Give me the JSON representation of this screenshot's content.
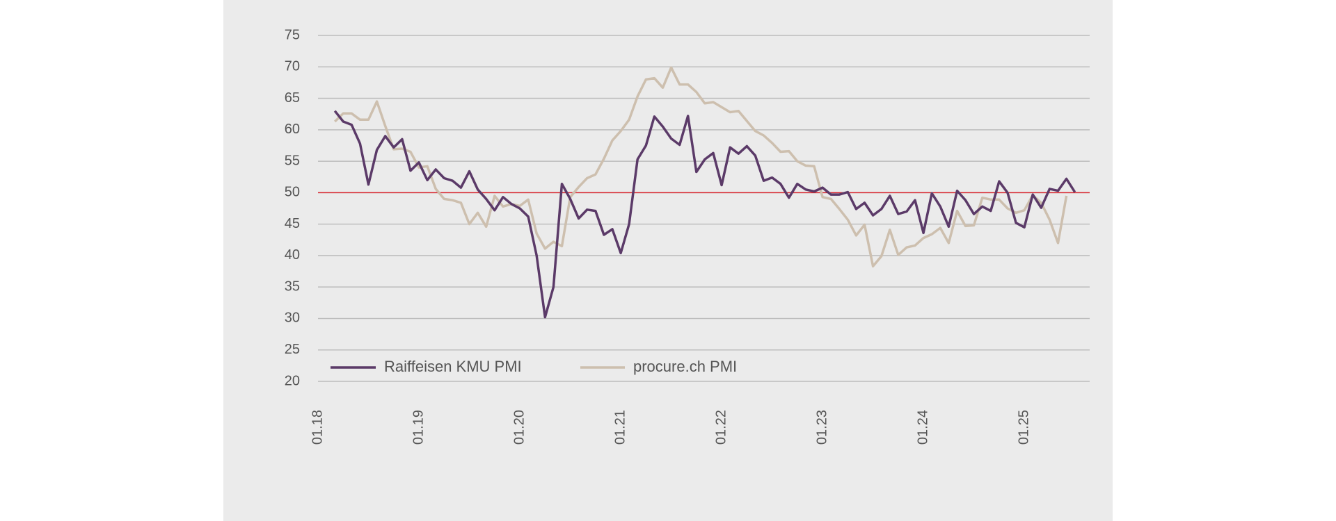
{
  "chart_data": {
    "type": "line",
    "categories": [
      "01.18",
      null,
      null,
      null,
      null,
      null,
      null,
      null,
      null,
      null,
      null,
      null,
      "01.19",
      null,
      null,
      null,
      null,
      null,
      null,
      null,
      null,
      null,
      null,
      null,
      "01.20",
      null,
      null,
      null,
      null,
      null,
      null,
      null,
      null,
      null,
      null,
      null,
      "01.21",
      null,
      null,
      null,
      null,
      null,
      null,
      null,
      null,
      null,
      null,
      null,
      "01.22",
      null,
      null,
      null,
      null,
      null,
      null,
      null,
      null,
      null,
      null,
      null,
      "01.23",
      null,
      null,
      null,
      null,
      null,
      null,
      null,
      null,
      null,
      null,
      null,
      "01.24",
      null,
      null,
      null,
      null,
      null,
      null,
      null,
      null,
      null,
      null,
      null,
      "01.25",
      null,
      null,
      null,
      null,
      null,
      null
    ],
    "series": [
      {
        "name": "Raiffeisen KMU PMI",
        "color": "#5b3a68",
        "values": [
          null,
          null,
          63.0,
          61.3,
          60.8,
          57.8,
          51.3,
          56.8,
          59.0,
          57.2,
          58.5,
          53.5,
          54.8,
          52.0,
          53.7,
          52.3,
          51.9,
          50.8,
          53.4,
          50.5,
          49.0,
          47.2,
          49.3,
          48.2,
          47.5,
          46.2,
          40.0,
          30.2,
          35.0,
          51.4,
          49.0,
          45.9,
          47.3,
          47.1,
          43.3,
          44.2,
          40.4,
          45.0,
          55.3,
          57.5,
          62.1,
          60.5,
          58.6,
          57.6,
          62.2,
          53.3,
          55.3,
          56.3,
          51.2,
          57.2,
          56.2,
          57.4,
          55.9,
          51.9,
          52.4,
          51.4,
          49.2,
          51.4,
          50.5,
          50.2,
          50.8,
          49.7,
          49.7,
          50.1,
          47.4,
          48.4,
          46.4,
          47.4,
          49.5,
          46.6,
          47.0,
          48.8,
          43.6,
          49.9,
          47.8,
          44.6,
          50.3,
          48.8,
          46.6,
          47.8,
          47.1,
          51.8,
          50.0,
          45.2,
          44.5,
          49.7,
          47.6,
          50.6,
          50.3,
          52.2,
          50.1
        ]
      },
      {
        "name": "procure.ch PMI",
        "color": "#cdbfae",
        "values": [
          null,
          null,
          61.3,
          62.6,
          62.6,
          61.6,
          61.6,
          64.5,
          60.6,
          56.9,
          57.0,
          56.5,
          54.0,
          54.2,
          50.6,
          49.0,
          48.8,
          48.4,
          45.0,
          46.8,
          44.6,
          49.5,
          47.8,
          48.2,
          47.9,
          48.9,
          43.5,
          41.1,
          42.2,
          41.5,
          49.3,
          50.9,
          52.3,
          52.9,
          55.4,
          58.3,
          59.8,
          61.6,
          65.3,
          68.0,
          68.2,
          66.7,
          69.9,
          67.2,
          67.2,
          66.0,
          64.2,
          64.4,
          63.6,
          62.8,
          63.0,
          61.4,
          59.8,
          59.1,
          57.9,
          56.5,
          56.6,
          55.0,
          54.3,
          54.2,
          49.3,
          49.0,
          47.4,
          45.7,
          43.2,
          44.9,
          38.3,
          39.9,
          44.1,
          40.1,
          41.3,
          41.6,
          42.8,
          43.4,
          44.4,
          42.0,
          47.1,
          44.7,
          44.8,
          49.2,
          48.9,
          48.9,
          47.5,
          46.8,
          47.2,
          49.6,
          48.4,
          45.7,
          42.0,
          49.5,
          null
        ]
      }
    ],
    "ylim": [
      20,
      75
    ],
    "yticks": [
      20,
      25,
      30,
      35,
      40,
      45,
      50,
      55,
      60,
      65,
      70,
      75
    ],
    "grid": true,
    "reference_line": {
      "value": 50,
      "color": "#d9232d"
    },
    "legend": "lower left"
  }
}
